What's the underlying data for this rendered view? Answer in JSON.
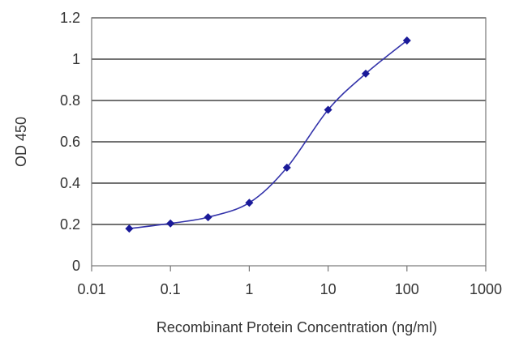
{
  "chart_data": {
    "type": "line",
    "title": "",
    "xlabel": "Recombinant Protein Concentration (ng/ml)",
    "ylabel": "OD 450",
    "xscale": "log",
    "xlim": [
      0.01,
      1000
    ],
    "ylim": [
      0,
      1.2
    ],
    "x_ticks": [
      0.01,
      0.1,
      1,
      10,
      100,
      1000
    ],
    "x_tick_labels": [
      "0.01",
      "0.1",
      "1",
      "10",
      "100",
      "1000"
    ],
    "y_ticks": [
      0,
      0.2,
      0.4,
      0.6,
      0.8,
      1,
      1.2
    ],
    "y_tick_labels": [
      "0",
      "0.2",
      "0.4",
      "0.6",
      "0.8",
      "1",
      "1.2"
    ],
    "grid": "horizontal",
    "legend": "none",
    "series": [
      {
        "x": [
          0.03,
          0.1,
          0.3,
          1,
          3,
          10,
          30,
          100
        ],
        "y": [
          0.18,
          0.205,
          0.235,
          0.305,
          0.475,
          0.755,
          0.93,
          1.09
        ]
      }
    ],
    "colors": {
      "line": "#3333aa",
      "marker": "#1a1a99",
      "grid": "#444444",
      "frame": "#777777",
      "text": "#333333"
    }
  }
}
